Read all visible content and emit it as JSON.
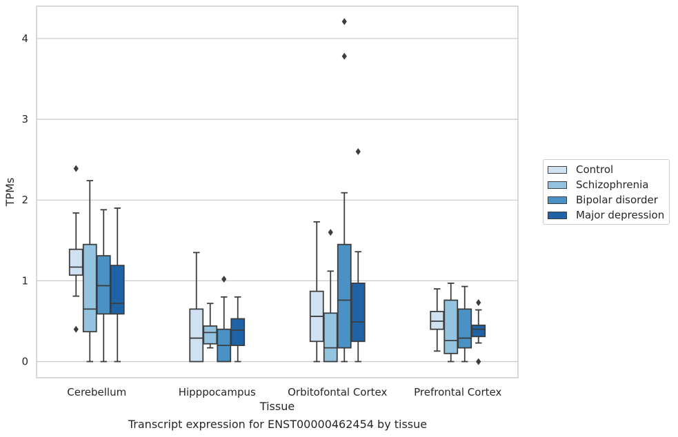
{
  "chart_data": {
    "type": "box",
    "title": "",
    "xlabel": "Tissue",
    "ylabel": "TPMs",
    "ylim": [
      -0.2,
      4.4
    ],
    "yticks": [
      0,
      1,
      2,
      3,
      4
    ],
    "grid": "horizontal",
    "legend_position": "right",
    "categories": [
      "Cerebellum",
      "Hipppocampus",
      "Orbitofontal Cortex",
      "Prefrontal Cortex"
    ],
    "series": [
      {
        "name": "Control",
        "color": "#d0e1f1",
        "boxes": [
          {
            "whislo": 0.81,
            "q1": 1.07,
            "med": 1.17,
            "q3": 1.39,
            "whishi": 1.84,
            "fliers": [
              2.39,
              0.4
            ]
          },
          {
            "whislo": 0.0,
            "q1": 0.0,
            "med": 0.29,
            "q3": 0.65,
            "whishi": 1.35,
            "fliers": []
          },
          {
            "whislo": 0.0,
            "q1": 0.25,
            "med": 0.56,
            "q3": 0.87,
            "whishi": 1.73,
            "fliers": []
          },
          {
            "whislo": 0.13,
            "q1": 0.4,
            "med": 0.5,
            "q3": 0.62,
            "whishi": 0.9,
            "fliers": []
          }
        ]
      },
      {
        "name": "Schizophrenia",
        "color": "#93c3df",
        "boxes": [
          {
            "whislo": 0.0,
            "q1": 0.37,
            "med": 0.65,
            "q3": 1.45,
            "whishi": 2.24,
            "fliers": []
          },
          {
            "whislo": 0.17,
            "q1": 0.22,
            "med": 0.36,
            "q3": 0.44,
            "whishi": 0.72,
            "fliers": []
          },
          {
            "whislo": 0.0,
            "q1": 0.0,
            "med": 0.17,
            "q3": 0.6,
            "whishi": 1.12,
            "fliers": [
              1.6
            ]
          },
          {
            "whislo": 0.0,
            "q1": 0.1,
            "med": 0.26,
            "q3": 0.76,
            "whishi": 0.97,
            "fliers": []
          }
        ]
      },
      {
        "name": "Bipolar disorder",
        "color": "#4a91c6",
        "boxes": [
          {
            "whislo": 0.0,
            "q1": 0.59,
            "med": 0.94,
            "q3": 1.31,
            "whishi": 1.88,
            "fliers": []
          },
          {
            "whislo": 0.0,
            "q1": 0.0,
            "med": 0.2,
            "q3": 0.4,
            "whishi": 0.8,
            "fliers": [
              1.02
            ]
          },
          {
            "whislo": 0.0,
            "q1": 0.17,
            "med": 0.76,
            "q3": 1.45,
            "whishi": 2.09,
            "fliers": [
              4.21,
              3.78
            ]
          },
          {
            "whislo": 0.0,
            "q1": 0.17,
            "med": 0.29,
            "q3": 0.65,
            "whishi": 0.93,
            "fliers": []
          }
        ]
      },
      {
        "name": "Major depression",
        "color": "#1e63a5",
        "boxes": [
          {
            "whislo": 0.0,
            "q1": 0.59,
            "med": 0.72,
            "q3": 1.19,
            "whishi": 1.9,
            "fliers": []
          },
          {
            "whislo": 0.0,
            "q1": 0.2,
            "med": 0.39,
            "q3": 0.53,
            "whishi": 0.8,
            "fliers": []
          },
          {
            "whislo": 0.0,
            "q1": 0.25,
            "med": 0.49,
            "q3": 0.97,
            "whishi": 1.36,
            "fliers": [
              2.6
            ]
          },
          {
            "whislo": 0.23,
            "q1": 0.31,
            "med": 0.4,
            "q3": 0.45,
            "whishi": 0.64,
            "fliers": [
              0.73,
              0.0
            ]
          }
        ]
      }
    ]
  },
  "caption": "Transcript expression for ENST00000462454 by tissue"
}
